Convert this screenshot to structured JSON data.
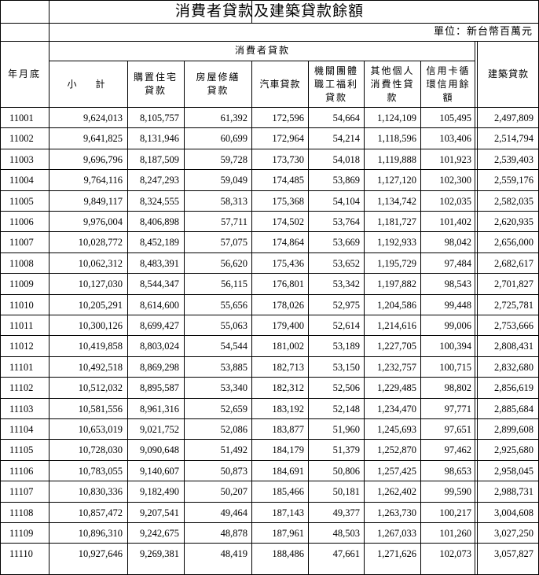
{
  "title": "消費者貸款及建築貸款餘額",
  "unit": "單位：新台幣百萬元",
  "headers": {
    "month": "年月底",
    "group": "消費者貸款",
    "subtotal": "小　計",
    "housing": "購置住宅\n貸款",
    "repair": "房屋修繕\n貸款",
    "car": "汽車貸款",
    "welfare": "機關團體\n職工福利\n貸款",
    "personal": "其他個人\n消費性貸\n款",
    "card": "信用卡循\n環信用餘\n額",
    "construction": "建築貸款"
  },
  "rows": [
    [
      "11001",
      "9,624,013",
      "8,105,757",
      "61,392",
      "172,596",
      "54,664",
      "1,124,109",
      "105,495",
      "2,497,809"
    ],
    [
      "11002",
      "9,641,825",
      "8,131,946",
      "60,699",
      "172,964",
      "54,214",
      "1,118,596",
      "103,406",
      "2,514,794"
    ],
    [
      "11003",
      "9,696,796",
      "8,187,509",
      "59,728",
      "173,730",
      "54,018",
      "1,119,888",
      "101,923",
      "2,539,403"
    ],
    [
      "11004",
      "9,764,116",
      "8,247,293",
      "59,049",
      "174,485",
      "53,869",
      "1,127,120",
      "102,300",
      "2,559,176"
    ],
    [
      "11005",
      "9,849,117",
      "8,324,555",
      "58,313",
      "175,368",
      "54,104",
      "1,134,742",
      "102,035",
      "2,582,035"
    ],
    [
      "11006",
      "9,976,004",
      "8,406,898",
      "57,711",
      "174,502",
      "53,764",
      "1,181,727",
      "101,402",
      "2,620,935"
    ],
    [
      "11007",
      "10,028,772",
      "8,452,189",
      "57,075",
      "174,864",
      "53,669",
      "1,192,933",
      "98,042",
      "2,656,000"
    ],
    [
      "11008",
      "10,062,312",
      "8,483,391",
      "56,620",
      "175,436",
      "53,652",
      "1,195,729",
      "97,484",
      "2,682,617"
    ],
    [
      "11009",
      "10,127,030",
      "8,544,347",
      "56,115",
      "176,801",
      "53,342",
      "1,197,882",
      "98,543",
      "2,701,827"
    ],
    [
      "11010",
      "10,205,291",
      "8,614,600",
      "55,656",
      "178,026",
      "52,975",
      "1,204,586",
      "99,448",
      "2,725,781"
    ],
    [
      "11011",
      "10,300,126",
      "8,699,427",
      "55,063",
      "179,400",
      "52,614",
      "1,214,616",
      "99,006",
      "2,753,666"
    ],
    [
      "11012",
      "10,419,858",
      "8,803,024",
      "54,544",
      "181,002",
      "53,189",
      "1,227,705",
      "100,394",
      "2,808,431"
    ],
    [
      "11101",
      "10,492,518",
      "8,869,298",
      "53,885",
      "182,713",
      "53,150",
      "1,232,757",
      "100,715",
      "2,832,680"
    ],
    [
      "11102",
      "10,512,032",
      "8,895,587",
      "53,340",
      "182,312",
      "52,506",
      "1,229,485",
      "98,802",
      "2,856,619"
    ],
    [
      "11103",
      "10,581,556",
      "8,961,316",
      "52,659",
      "183,192",
      "52,148",
      "1,234,470",
      "97,771",
      "2,885,684"
    ],
    [
      "11104",
      "10,653,019",
      "9,021,752",
      "52,086",
      "183,877",
      "51,960",
      "1,245,693",
      "97,651",
      "2,899,608"
    ],
    [
      "11105",
      "10,728,030",
      "9,090,648",
      "51,492",
      "184,179",
      "51,379",
      "1,252,870",
      "97,462",
      "2,925,680"
    ],
    [
      "11106",
      "10,783,055",
      "9,140,607",
      "50,873",
      "184,691",
      "50,806",
      "1,257,425",
      "98,653",
      "2,958,045"
    ],
    [
      "11107",
      "10,830,336",
      "9,182,490",
      "50,207",
      "185,466",
      "50,181",
      "1,262,402",
      "99,590",
      "2,988,731"
    ],
    [
      "11108",
      "10,857,472",
      "9,207,541",
      "49,464",
      "187,143",
      "49,377",
      "1,263,730",
      "100,217",
      "3,004,608"
    ],
    [
      "11109",
      "10,896,310",
      "9,242,675",
      "48,878",
      "187,961",
      "48,503",
      "1,267,033",
      "101,260",
      "3,027,250"
    ],
    [
      "11110",
      "10,927,646",
      "9,269,381",
      "48,419",
      "188,486",
      "47,661",
      "1,271,626",
      "102,073",
      "3,057,827"
    ]
  ]
}
